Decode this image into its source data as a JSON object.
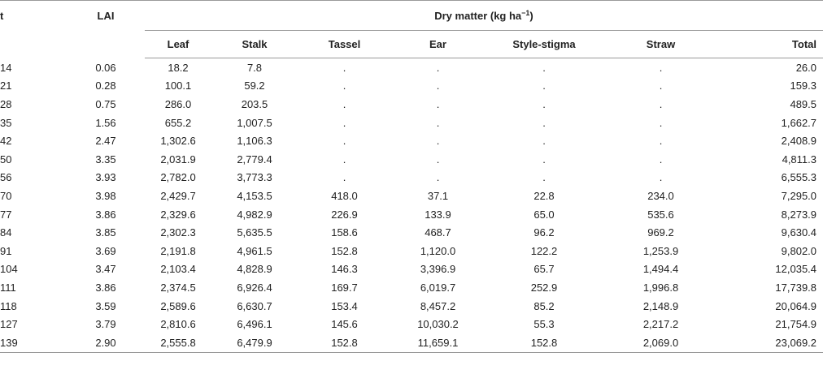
{
  "header": {
    "col_t": "t",
    "col_lai": "LAI",
    "span_label": "Dry matter (kg ha",
    "span_exponent": "−1",
    "span_close": ")",
    "subcols": [
      "Leaf",
      "Stalk",
      "Tassel",
      "Ear",
      "Style-stigma",
      "Straw",
      "Total"
    ]
  },
  "rows": [
    {
      "t": "14",
      "lai": "0.06",
      "leaf": "18.2",
      "stalk": "7.8",
      "tassel": ".",
      "ear": ".",
      "style": ".",
      "straw": ".",
      "total": "26.0"
    },
    {
      "t": "21",
      "lai": "0.28",
      "leaf": "100.1",
      "stalk": "59.2",
      "tassel": ".",
      "ear": ".",
      "style": ".",
      "straw": ".",
      "total": "159.3"
    },
    {
      "t": "28",
      "lai": "0.75",
      "leaf": "286.0",
      "stalk": "203.5",
      "tassel": ".",
      "ear": ".",
      "style": ".",
      "straw": ".",
      "total": "489.5"
    },
    {
      "t": "35",
      "lai": "1.56",
      "leaf": "655.2",
      "stalk": "1,007.5",
      "tassel": ".",
      "ear": ".",
      "style": ".",
      "straw": ".",
      "total": "1,662.7"
    },
    {
      "t": "42",
      "lai": "2.47",
      "leaf": "1,302.6",
      "stalk": "1,106.3",
      "tassel": ".",
      "ear": ".",
      "style": ".",
      "straw": ".",
      "total": "2,408.9"
    },
    {
      "t": "50",
      "lai": "3.35",
      "leaf": "2,031.9",
      "stalk": "2,779.4",
      "tassel": ".",
      "ear": ".",
      "style": ".",
      "straw": ".",
      "total": "4,811.3"
    },
    {
      "t": "56",
      "lai": "3.93",
      "leaf": "2,782.0",
      "stalk": "3,773.3",
      "tassel": ".",
      "ear": ".",
      "style": ".",
      "straw": ".",
      "total": "6,555.3"
    },
    {
      "t": "70",
      "lai": "3.98",
      "leaf": "2,429.7",
      "stalk": "4,153.5",
      "tassel": "418.0",
      "ear": "37.1",
      "style": "22.8",
      "straw": "234.0",
      "total": "7,295.0"
    },
    {
      "t": "77",
      "lai": "3.86",
      "leaf": "2,329.6",
      "stalk": "4,982.9",
      "tassel": "226.9",
      "ear": "133.9",
      "style": "65.0",
      "straw": "535.6",
      "total": "8,273.9"
    },
    {
      "t": "84",
      "lai": "3.85",
      "leaf": "2,302.3",
      "stalk": "5,635.5",
      "tassel": "158.6",
      "ear": "468.7",
      "style": "96.2",
      "straw": "969.2",
      "total": "9,630.4"
    },
    {
      "t": "91",
      "lai": "3.69",
      "leaf": "2,191.8",
      "stalk": "4,961.5",
      "tassel": "152.8",
      "ear": "1,120.0",
      "style": "122.2",
      "straw": "1,253.9",
      "total": "9,802.0"
    },
    {
      "t": "104",
      "lai": "3.47",
      "leaf": "2,103.4",
      "stalk": "4,828.9",
      "tassel": "146.3",
      "ear": "3,396.9",
      "style": "65.7",
      "straw": "1,494.4",
      "total": "12,035.4"
    },
    {
      "t": "111",
      "lai": "3.86",
      "leaf": "2,374.5",
      "stalk": "6,926.4",
      "tassel": "169.7",
      "ear": "6,019.7",
      "style": "252.9",
      "straw": "1,996.8",
      "total": "17,739.8"
    },
    {
      "t": "118",
      "lai": "3.59",
      "leaf": "2,589.6",
      "stalk": "6,630.7",
      "tassel": "153.4",
      "ear": "8,457.2",
      "style": "85.2",
      "straw": "2,148.9",
      "total": "20,064.9"
    },
    {
      "t": "127",
      "lai": "3.79",
      "leaf": "2,810.6",
      "stalk": "6,496.1",
      "tassel": "145.6",
      "ear": "10,030.2",
      "style": "55.3",
      "straw": "2,217.2",
      "total": "21,754.9"
    },
    {
      "t": "139",
      "lai": "2.90",
      "leaf": "2,555.8",
      "stalk": "6,479.9",
      "tassel": "152.8",
      "ear": "11,659.1",
      "style": "152.8",
      "straw": "2,069.0",
      "total": "23,069.2"
    }
  ]
}
